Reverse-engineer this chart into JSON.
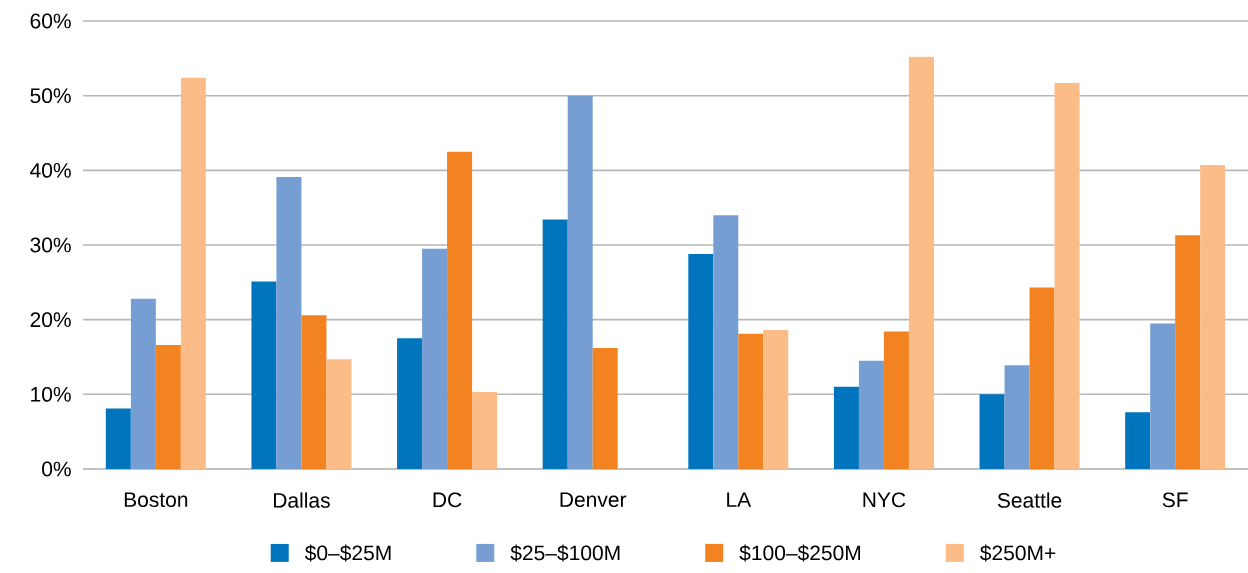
{
  "chart_data": {
    "type": "bar",
    "categories": [
      "Boston",
      "Dallas",
      "DC",
      "Denver",
      "LA",
      "NYC",
      "Seattle",
      "SF"
    ],
    "series": [
      {
        "name": "$0–$25M",
        "color": "#0174be",
        "values": [
          8.1,
          25.1,
          17.5,
          33.4,
          28.8,
          11.0,
          10.0,
          7.6
        ]
      },
      {
        "name": "$25–$100M",
        "color": "#769ed3",
        "values": [
          22.8,
          39.1,
          29.5,
          50.0,
          34.0,
          14.5,
          13.9,
          19.5
        ]
      },
      {
        "name": "$100–$250M",
        "color": "#f38220",
        "values": [
          16.6,
          20.6,
          42.5,
          16.2,
          18.1,
          18.4,
          24.3,
          31.3
        ]
      },
      {
        "name": "$250M+",
        "color": "#fbbc87",
        "values": [
          52.4,
          14.7,
          10.3,
          null,
          18.6,
          55.2,
          51.7,
          40.7
        ]
      }
    ],
    "ylim": [
      0,
      60
    ],
    "yticks": [
      {
        "value": 0,
        "label": "0%"
      },
      {
        "value": 10,
        "label": "10%"
      },
      {
        "value": 20,
        "label": "20%"
      },
      {
        "value": 30,
        "label": "30%"
      },
      {
        "value": 40,
        "label": "40%"
      },
      {
        "value": 50,
        "label": "50%"
      },
      {
        "value": 60,
        "label": "60%"
      }
    ],
    "grid": "y",
    "legend": "bottom"
  }
}
